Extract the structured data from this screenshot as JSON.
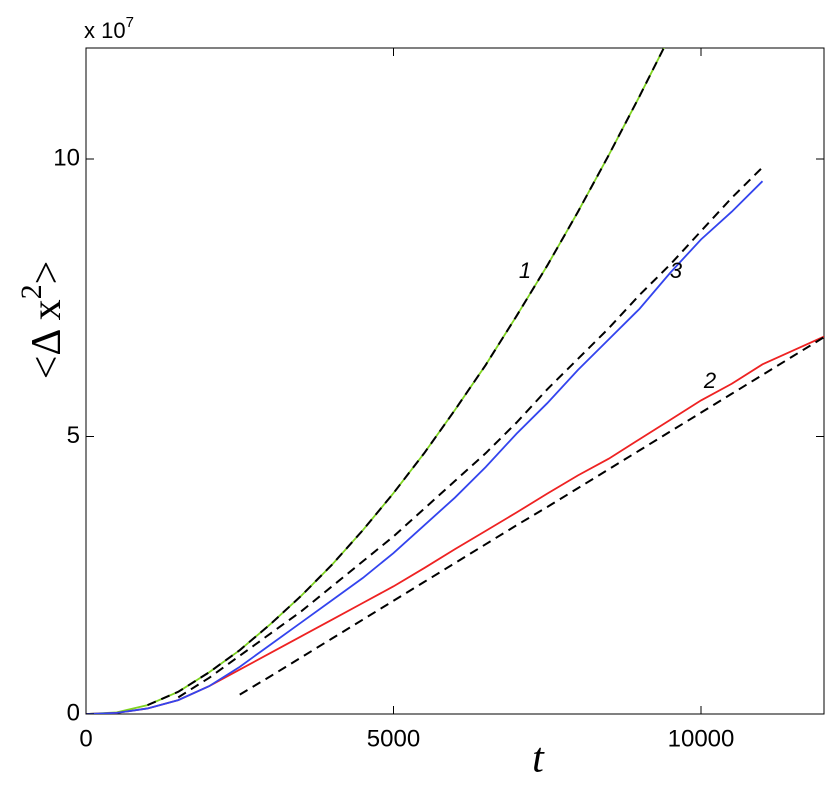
{
  "chart_data": {
    "type": "line",
    "xlabel": "t",
    "ylabel": "<Δ x",
    "ylabel_superscript": "2",
    "ylabel_suffix": ">",
    "y_scale_label": "x 10",
    "y_scale_exponent": "7",
    "x": [
      0,
      500,
      1000,
      1500,
      2000,
      2500,
      3000,
      3500,
      4000,
      4500,
      5000,
      5500,
      6000,
      6500,
      7000,
      7500,
      8000,
      8500,
      9000,
      9500,
      10000,
      10500,
      11000,
      11500,
      12000
    ],
    "series": [
      {
        "color": "#7ed321",
        "dash": false,
        "values": [
          0,
          0.03,
          0.16,
          0.4,
          0.75,
          1.15,
          1.62,
          2.13,
          2.69,
          3.31,
          3.98,
          4.7,
          5.48,
          6.29,
          7.17,
          8.08,
          9.05,
          10.07,
          11.13,
          12.23,
          null,
          null,
          null,
          null,
          null
        ]
      },
      {
        "color": "#ee2222",
        "dash": false,
        "values": [
          0,
          0.02,
          0.1,
          0.25,
          0.5,
          0.8,
          1.1,
          1.4,
          1.7,
          2.0,
          2.3,
          2.63,
          2.97,
          3.3,
          3.63,
          3.97,
          4.3,
          4.6,
          4.95,
          5.3,
          5.65,
          5.95,
          6.3,
          6.55,
          6.8
        ]
      },
      {
        "color": "#3344ee",
        "dash": false,
        "values": [
          0,
          0.02,
          0.1,
          0.25,
          0.5,
          0.85,
          1.25,
          1.65,
          2.05,
          2.45,
          2.9,
          3.4,
          3.9,
          4.45,
          5.05,
          5.6,
          6.2,
          6.75,
          7.3,
          7.95,
          8.55,
          9.05,
          9.6,
          null,
          null
        ]
      },
      {
        "color": "#000000",
        "dash": true,
        "values": [
          null,
          null,
          0.16,
          0.4,
          0.75,
          1.15,
          1.62,
          2.13,
          2.69,
          3.31,
          3.98,
          4.7,
          5.48,
          6.29,
          7.17,
          8.08,
          9.05,
          10.07,
          11.13,
          12.23,
          null,
          null,
          null,
          null,
          null
        ]
      },
      {
        "color": "#000000",
        "dash": true,
        "values": [
          null,
          null,
          null,
          0.3,
          0.65,
          1.05,
          1.45,
          1.85,
          2.3,
          2.75,
          3.2,
          3.7,
          4.2,
          4.7,
          5.25,
          5.85,
          6.4,
          6.95,
          7.55,
          8.1,
          8.7,
          9.3,
          9.85,
          null,
          null
        ]
      },
      {
        "color": "#000000",
        "dash": true,
        "values": [
          null,
          null,
          null,
          null,
          null,
          0.35,
          0.68,
          1.02,
          1.36,
          1.7,
          2.04,
          2.38,
          2.72,
          3.06,
          3.4,
          3.73,
          4.07,
          4.41,
          4.75,
          5.09,
          5.43,
          5.77,
          6.11,
          6.45,
          6.79
        ]
      }
    ],
    "annotations": [
      "1",
      "3",
      "2"
    ],
    "xlim": [
      0,
      12000
    ],
    "xticks": [
      0,
      5000,
      10000
    ],
    "ylim": [
      0,
      12
    ],
    "yticks": [
      0,
      5,
      10
    ],
    "grid": false
  }
}
